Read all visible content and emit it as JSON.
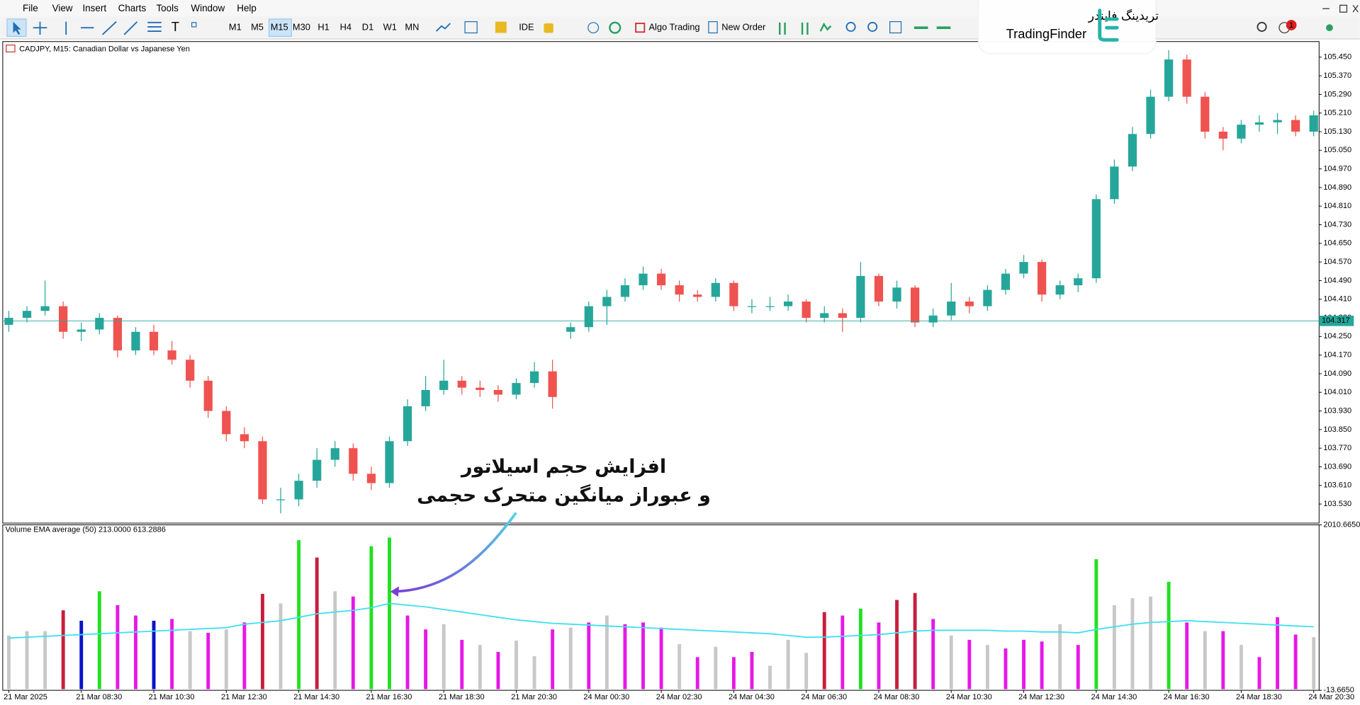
{
  "menu": [
    "File",
    "View",
    "Insert",
    "Charts",
    "Tools",
    "Window",
    "Help"
  ],
  "toolbar": {
    "timeframes": [
      "M1",
      "M5",
      "M15",
      "M30",
      "H1",
      "H4",
      "D1",
      "W1",
      "MN"
    ],
    "ide": "IDE",
    "algo_trading": "Algo Trading",
    "new_order": "New Order"
  },
  "logo": {
    "persian": "تریدینگ فایندر",
    "latin": "TradingFinder"
  },
  "notifications": 1,
  "annotation": {
    "lines": [
      "افزایش حجم اسیلاتور",
      "و عبوراز میانگین متحرک حجمی"
    ]
  },
  "chart_data": [
    {
      "type": "candlestick",
      "title": "CADJPY, M15:  Canadian Dollar vs Japanese Yen",
      "open": [
        104.3,
        104.33,
        104.36,
        104.38,
        104.27,
        104.28,
        104.33,
        104.19,
        104.27,
        104.19,
        104.15,
        104.06,
        103.93,
        103.83,
        103.8,
        103.55,
        103.55,
        103.63,
        103.72,
        103.77,
        103.66,
        103.62,
        103.8,
        103.95,
        104.02,
        104.06,
        104.03,
        104.02,
        104.0,
        104.05,
        104.1,
        104.27,
        104.29,
        104.38,
        104.42,
        104.47,
        104.52,
        104.47,
        104.43,
        104.42,
        104.48,
        104.38,
        104.38,
        104.38,
        104.4,
        104.33,
        104.35,
        104.33,
        104.51,
        104.4,
        104.46,
        104.31,
        104.34,
        104.4,
        104.38,
        104.45,
        104.52,
        104.57,
        104.43,
        104.47,
        104.5,
        104.84,
        104.98,
        105.12,
        105.28,
        105.44,
        105.28,
        105.13,
        105.1,
        105.16,
        105.17,
        105.18,
        105.13
      ],
      "high": [
        104.36,
        104.38,
        104.49,
        104.4,
        104.31,
        104.35,
        104.34,
        104.29,
        104.3,
        104.23,
        104.17,
        104.08,
        103.95,
        103.86,
        103.82,
        103.6,
        103.66,
        103.77,
        103.8,
        103.79,
        103.69,
        103.82,
        103.98,
        104.08,
        104.15,
        104.08,
        104.06,
        104.04,
        104.07,
        104.14,
        104.15,
        104.31,
        104.4,
        104.45,
        104.5,
        104.55,
        104.54,
        104.49,
        104.45,
        104.5,
        104.49,
        104.41,
        104.42,
        104.43,
        104.41,
        104.38,
        104.37,
        104.57,
        104.52,
        104.49,
        104.47,
        104.37,
        104.48,
        104.42,
        104.47,
        104.54,
        104.6,
        104.58,
        104.49,
        104.52,
        104.86,
        105.01,
        105.15,
        105.31,
        105.48,
        105.46,
        105.3,
        105.15,
        105.18,
        105.2,
        105.21,
        105.2,
        105.22
      ],
      "low": [
        104.27,
        104.31,
        104.34,
        104.24,
        104.23,
        104.26,
        104.16,
        104.17,
        104.17,
        104.13,
        104.03,
        103.9,
        103.8,
        103.77,
        103.53,
        103.49,
        103.52,
        103.6,
        103.69,
        103.63,
        103.59,
        103.6,
        103.78,
        103.93,
        104.0,
        104.0,
        103.99,
        103.97,
        103.98,
        104.03,
        103.94,
        104.24,
        104.27,
        104.3,
        104.4,
        104.45,
        104.45,
        104.4,
        104.4,
        104.4,
        104.36,
        104.35,
        104.36,
        104.36,
        104.31,
        104.31,
        104.27,
        104.31,
        104.38,
        104.37,
        104.29,
        104.29,
        104.32,
        104.35,
        104.36,
        104.43,
        104.5,
        104.4,
        104.41,
        104.44,
        104.48,
        104.82,
        104.96,
        105.1,
        105.26,
        105.25,
        105.1,
        105.05,
        105.08,
        105.13,
        105.12,
        105.11,
        105.11
      ],
      "close": [
        104.33,
        104.36,
        104.38,
        104.27,
        104.28,
        104.33,
        104.19,
        104.27,
        104.19,
        104.15,
        104.06,
        103.93,
        103.83,
        103.8,
        103.55,
        103.55,
        103.63,
        103.72,
        103.77,
        103.66,
        103.62,
        103.8,
        103.95,
        104.02,
        104.06,
        104.03,
        104.02,
        104.0,
        104.05,
        104.1,
        103.99,
        104.29,
        104.38,
        104.42,
        104.47,
        104.52,
        104.47,
        104.43,
        104.42,
        104.48,
        104.38,
        104.38,
        104.38,
        104.4,
        104.33,
        104.35,
        104.33,
        104.51,
        104.4,
        104.46,
        104.31,
        104.34,
        104.4,
        104.38,
        104.45,
        104.52,
        104.57,
        104.43,
        104.47,
        104.5,
        104.84,
        104.98,
        105.12,
        105.28,
        105.44,
        105.28,
        105.13,
        105.1,
        105.16,
        105.17,
        105.18,
        105.13,
        105.2
      ],
      "up_color": "#26a69a",
      "down_color": "#ef5350",
      "current_price": 104.317,
      "current_price_color": "#26a69a",
      "ylim": [
        103.448,
        105.517
      ],
      "yticks": [
        {
          "value": 105.45,
          "label": "105.450"
        },
        {
          "value": 105.37,
          "label": "105.370"
        },
        {
          "value": 105.29,
          "label": "105.290"
        },
        {
          "value": 105.21,
          "label": "105.210"
        },
        {
          "value": 105.13,
          "label": "105.130"
        },
        {
          "value": 105.05,
          "label": "105.050"
        },
        {
          "value": 104.97,
          "label": "104.970"
        },
        {
          "value": 104.89,
          "label": "104.890"
        },
        {
          "value": 104.81,
          "label": "104.810"
        },
        {
          "value": 104.73,
          "label": "104.730"
        },
        {
          "value": 104.65,
          "label": "104.650"
        },
        {
          "value": 104.57,
          "label": "104.570"
        },
        {
          "value": 104.49,
          "label": "104.490"
        },
        {
          "value": 104.41,
          "label": "104.410"
        },
        {
          "value": 104.33,
          "label": "104.330"
        },
        {
          "value": 104.25,
          "label": "104.250"
        },
        {
          "value": 104.17,
          "label": "104.170"
        },
        {
          "value": 104.09,
          "label": "104.090"
        },
        {
          "value": 104.01,
          "label": "104.010"
        },
        {
          "value": 103.93,
          "label": "103.930"
        },
        {
          "value": 103.85,
          "label": "103.850"
        },
        {
          "value": 103.77,
          "label": "103.770"
        },
        {
          "value": 103.69,
          "label": "103.690"
        },
        {
          "value": 103.61,
          "label": "103.610"
        },
        {
          "value": 103.53,
          "label": "103.530"
        }
      ]
    },
    {
      "type": "bar",
      "title": "Volume EMA average (50) 213.0000 613.2886",
      "categories": [
        "21 Mar 2025",
        null,
        null,
        null,
        "21 Mar 08:30",
        null,
        null,
        null,
        "21 Mar 10:30",
        null,
        null,
        null,
        "21 Mar 12:30",
        null,
        null,
        null,
        "21 Mar 14:30",
        null,
        null,
        null,
        "21 Mar 16:30",
        null,
        null,
        null,
        "21 Mar 18:30",
        null,
        null,
        null,
        "21 Mar 20:30",
        null,
        null,
        null,
        "24 Mar 00:30",
        null,
        null,
        null,
        "24 Mar 02:30",
        null,
        null,
        null,
        "24 Mar 04:30",
        null,
        null,
        null,
        "24 Mar 06:30",
        null,
        null,
        null,
        "24 Mar 08:30",
        null,
        null,
        null,
        "24 Mar 10:30",
        null,
        null,
        null,
        "24 Mar 12:30",
        null,
        null,
        null,
        "24 Mar 14:30",
        null,
        null,
        null,
        "24 Mar 16:30",
        null,
        null,
        null,
        "24 Mar 18:30",
        null,
        null,
        null,
        "24 Mar 20:30"
      ],
      "values": [
        657,
        710,
        710,
        965,
        837,
        1198,
        1028,
        901,
        837,
        859,
        710,
        689,
        731,
        816,
        1166,
        1049,
        1823,
        1611,
        1198,
        1134,
        1749,
        1855,
        901,
        731,
        795,
        604,
        541,
        456,
        594,
        403,
        731,
        753,
        816,
        901,
        795,
        816,
        753,
        551,
        392,
        519,
        392,
        456,
        286,
        604,
        445,
        943,
        901,
        986,
        816,
        1092,
        1177,
        859,
        657,
        604,
        541,
        498,
        604,
        583,
        795,
        541,
        1590,
        1028,
        1113,
        1134,
        1314,
        816,
        710,
        710,
        541,
        392,
        880,
        668,
        636
      ],
      "colors": [
        "#c8c8c8",
        "#c8c8c8",
        "#c8c8c8",
        "#c81e3c",
        "#0a14c8",
        "#22e022",
        "#e619e6",
        "#e619e6",
        "#0a14c8",
        "#e619e6",
        "#c8c8c8",
        "#e619e6",
        "#c8c8c8",
        "#e619e6",
        "#c81e3c",
        "#c8c8c8",
        "#22e022",
        "#c81e3c",
        "#c8c8c8",
        "#e619e6",
        "#22e022",
        "#22e022",
        "#e619e6",
        "#e619e6",
        "#c8c8c8",
        "#e619e6",
        "#c8c8c8",
        "#e619e6",
        "#c8c8c8",
        "#c8c8c8",
        "#e619e6",
        "#c8c8c8",
        "#e619e6",
        "#c8c8c8",
        "#e619e6",
        "#e619e6",
        "#e619e6",
        "#c8c8c8",
        "#e619e6",
        "#c8c8c8",
        "#e619e6",
        "#e619e6",
        "#c8c8c8",
        "#c8c8c8",
        "#c8c8c8",
        "#c81e3c",
        "#e619e6",
        "#22e022",
        "#e619e6",
        "#c81e3c",
        "#c81e3c",
        "#e619e6",
        "#c8c8c8",
        "#e619e6",
        "#c8c8c8",
        "#e619e6",
        "#e619e6",
        "#e619e6",
        "#c8c8c8",
        "#e619e6",
        "#22e022",
        "#c8c8c8",
        "#c8c8c8",
        "#c8c8c8",
        "#22e022",
        "#e619e6",
        "#c8c8c8",
        "#e619e6",
        "#c8c8c8",
        "#e619e6",
        "#e619e6",
        "#e619e6",
        "#c8c8c8"
      ],
      "line_values": [
        625,
        636,
        647,
        657,
        668,
        678,
        689,
        700,
        710,
        721,
        731,
        742,
        753,
        795,
        816,
        837,
        880,
        922,
        943,
        965,
        996,
        1049,
        1028,
        1007,
        975,
        943,
        912,
        880,
        848,
        827,
        806,
        795,
        784,
        774,
        763,
        753,
        742,
        731,
        721,
        710,
        700,
        689,
        678,
        657,
        636,
        636,
        647,
        657,
        668,
        689,
        710,
        721,
        721,
        721,
        721,
        710,
        710,
        700,
        700,
        689,
        731,
        763,
        795,
        816,
        827,
        837,
        827,
        816,
        806,
        795,
        784,
        774,
        763
      ],
      "line_color": "#40e0f0",
      "ylim": [
        -13.665,
        2010.665
      ],
      "yticks": [
        {
          "value": 2010.665,
          "label": "2010.6650"
        },
        {
          "value": -13.665,
          "label": "-13.6650"
        }
      ]
    }
  ]
}
